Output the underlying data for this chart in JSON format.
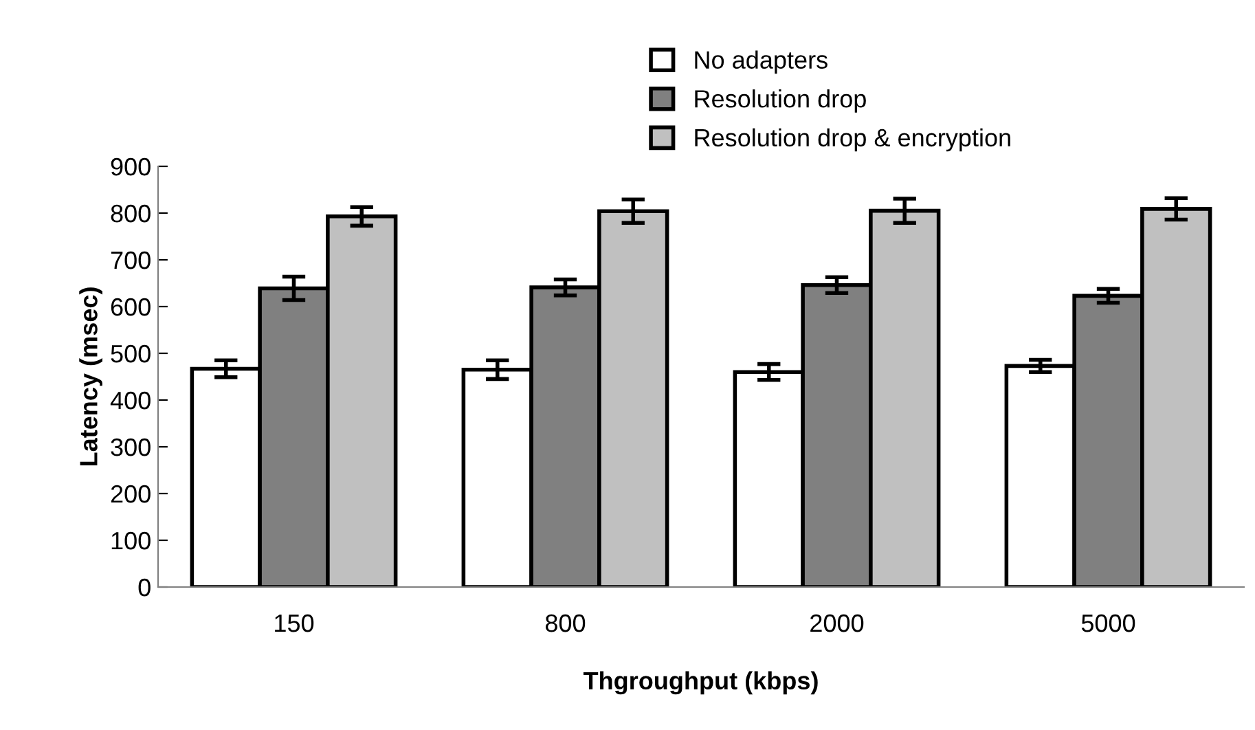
{
  "chart_data": {
    "type": "bar",
    "xlabel": "Thgroughput (kbps)",
    "ylabel": "Latency (msec)",
    "categories": [
      "150",
      "800",
      "2000",
      "5000"
    ],
    "series": [
      {
        "name": "No adapters",
        "color": "#ffffff",
        "values": [
          467,
          465,
          460,
          473
        ],
        "errors": [
          18,
          20,
          17,
          13
        ]
      },
      {
        "name": "Resolution drop",
        "color": "#808080",
        "values": [
          639,
          641,
          646,
          623
        ],
        "errors": [
          25,
          17,
          17,
          15
        ]
      },
      {
        "name": "Resolution drop & encryption",
        "color": "#c0c0c0",
        "values": [
          793,
          804,
          805,
          809
        ],
        "errors": [
          20,
          25,
          26,
          23
        ]
      }
    ],
    "ylim": [
      0,
      900
    ],
    "yticks": [
      0,
      100,
      200,
      300,
      400,
      500,
      600,
      700,
      800,
      900
    ],
    "grid": false,
    "legend": "top"
  }
}
